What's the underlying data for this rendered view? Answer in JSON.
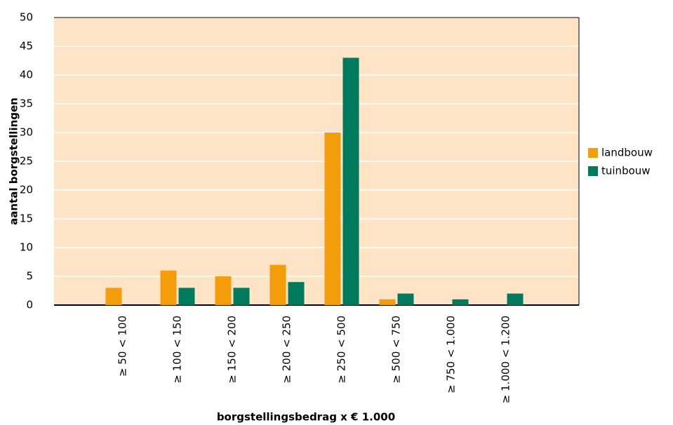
{
  "chart_data": {
    "type": "bar",
    "categories": [
      "≥ 50 < 100",
      "≥ 100 < 150",
      "≥ 150 < 200",
      "≥ 200 < 250",
      "≥ 250 < 500",
      "≥ 500 < 750",
      "≥ 750 < 1.000",
      "≥ 1.000 < 1.200"
    ],
    "series": [
      {
        "name": "landbouw",
        "color": "#f39c0c",
        "values": [
          3,
          6,
          5,
          7,
          30,
          1,
          0,
          0
        ]
      },
      {
        "name": "tuinbouw",
        "color": "#007a5c",
        "values": [
          0,
          3,
          3,
          4,
          43,
          2,
          1,
          2
        ]
      }
    ],
    "ylim": [
      0,
      50
    ],
    "yticks": [
      0,
      5,
      10,
      15,
      20,
      25,
      30,
      35,
      40,
      45,
      50
    ],
    "grid": true,
    "x_label": "borgstellingsbedrag x € 1.000",
    "y_label": "aantal borgstellingen",
    "legend": "right",
    "background": "#fde4c6"
  }
}
